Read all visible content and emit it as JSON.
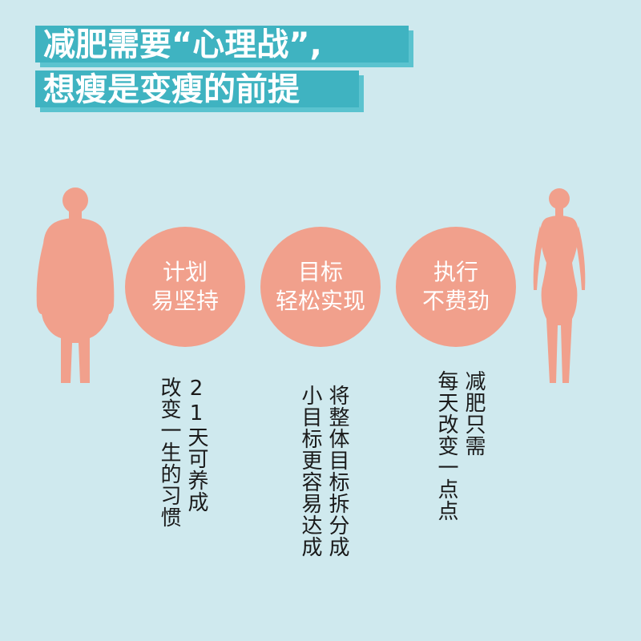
{
  "title": {
    "line1": "减肥需要“心理战”,",
    "line2": "想瘦是变瘦的前提"
  },
  "circles": [
    {
      "line1": "计划",
      "line2": "易坚持"
    },
    {
      "line1": "目标",
      "line2": "轻松实现"
    },
    {
      "line1": "执行",
      "line2": "不费劲"
    }
  ],
  "notes": [
    {
      "col1": "21天可养成",
      "col2": "改变一生的习惯"
    },
    {
      "col1": "将整体目标拆分成",
      "col2": "小目标更容易达成"
    },
    {
      "col1": "减肥只需",
      "col2": "每天改变一点点"
    }
  ],
  "colors": {
    "background": "#cfe9ee",
    "title_band": "#3fb3c1",
    "accent": "#f1a08c"
  },
  "icons": [
    "heavy-body-silhouette-icon",
    "slim-body-silhouette-icon"
  ]
}
